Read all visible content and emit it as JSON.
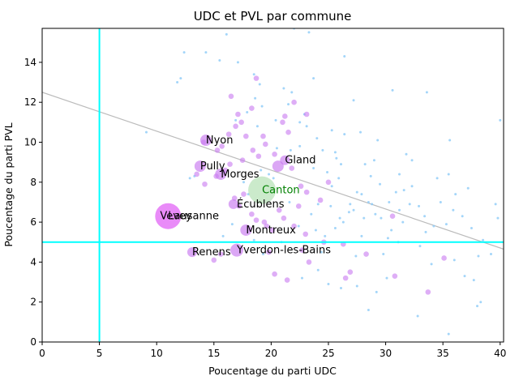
{
  "chart_data": {
    "type": "scatter",
    "title": "UDC et PVL par commune",
    "xlabel": "Poucentage du parti UDC",
    "ylabel": "Poucentage du parti PVL",
    "xlim": [
      0,
      40.3
    ],
    "ylim": [
      0,
      15.7
    ],
    "xticks": [
      0,
      5,
      10,
      15,
      20,
      25,
      30,
      35,
      40
    ],
    "yticks": [
      0,
      2,
      4,
      6,
      8,
      10,
      12,
      14
    ],
    "grid": false,
    "reference_lines": {
      "vertical_x": 5,
      "horizontal_y": 5,
      "color": "#00ffff"
    },
    "trend_line": {
      "x": [
        0,
        40.3
      ],
      "y": [
        12.5,
        4.65
      ],
      "color": "#bbbbbb"
    },
    "colors": {
      "large": "#c878f0",
      "small": "#8ccaf8",
      "highlight": "#e05af5",
      "canton": "#a8dca8",
      "canton_text": "#008000"
    },
    "highlight_points": [
      {
        "x": 11.0,
        "y": 6.3,
        "r": 16
      },
      {
        "x": 19.2,
        "y": 7.6,
        "r": 17
      },
      {
        "x": 14.3,
        "y": 10.1,
        "r": 7
      },
      {
        "x": 13.8,
        "y": 8.8,
        "r": 7
      },
      {
        "x": 15.6,
        "y": 8.4,
        "r": 7
      },
      {
        "x": 20.6,
        "y": 8.8,
        "r": 7
      },
      {
        "x": 21.2,
        "y": 9.1,
        "r": 6
      },
      {
        "x": 17.8,
        "y": 5.6,
        "r": 7
      },
      {
        "x": 17.0,
        "y": 4.6,
        "r": 8
      },
      {
        "x": 13.1,
        "y": 4.5,
        "r": 6
      },
      {
        "x": 16.7,
        "y": 6.9,
        "r": 6
      }
    ],
    "medium_points": [
      [
        14.1,
        10.0
      ],
      [
        15.7,
        9.8
      ],
      [
        16.3,
        10.4
      ],
      [
        15.3,
        9.6
      ],
      [
        13.5,
        8.4
      ],
      [
        14.2,
        7.9
      ],
      [
        15.2,
        8.3
      ],
      [
        16.0,
        8.6
      ],
      [
        16.8,
        7.2
      ],
      [
        17.6,
        7.4
      ],
      [
        16.5,
        12.3
      ],
      [
        17.1,
        11.4
      ],
      [
        17.4,
        11.0
      ],
      [
        18.3,
        11.7
      ],
      [
        17.8,
        10.3
      ],
      [
        19.3,
        10.3
      ],
      [
        19.5,
        9.9
      ],
      [
        18.4,
        9.6
      ],
      [
        20.3,
        9.4
      ],
      [
        21.8,
        8.7
      ],
      [
        22.6,
        7.8
      ],
      [
        23.1,
        7.5
      ],
      [
        24.3,
        7.1
      ],
      [
        22.4,
        6.8
      ],
      [
        21.1,
        6.2
      ],
      [
        20.7,
        6.6
      ],
      [
        19.6,
        5.8
      ],
      [
        18.3,
        6.4
      ],
      [
        18.7,
        6.1
      ],
      [
        19.4,
        6.0
      ],
      [
        20.1,
        5.6
      ],
      [
        22.0,
        5.8
      ],
      [
        23.0,
        5.4
      ],
      [
        24.6,
        5.0
      ],
      [
        23.3,
        4.0
      ],
      [
        22.7,
        4.6
      ],
      [
        21.4,
        3.1
      ],
      [
        20.3,
        3.4
      ],
      [
        19.8,
        4.5
      ],
      [
        15.6,
        4.4
      ],
      [
        15.0,
        4.1
      ],
      [
        17.2,
        6.8
      ],
      [
        21.2,
        11.3
      ],
      [
        21.5,
        10.5
      ],
      [
        22.0,
        12.0
      ],
      [
        23.1,
        11.4
      ],
      [
        21.0,
        11.0
      ],
      [
        25.0,
        8.0
      ],
      [
        26.5,
        3.2
      ],
      [
        26.3,
        4.9
      ],
      [
        26.9,
        3.5
      ],
      [
        28.3,
        4.4
      ],
      [
        30.8,
        3.3
      ],
      [
        33.7,
        2.5
      ],
      [
        35.1,
        4.2
      ],
      [
        30.6,
        6.3
      ],
      [
        17.5,
        9.1
      ],
      [
        18.9,
        9.3
      ],
      [
        16.9,
        10.8
      ],
      [
        18.7,
        13.2
      ],
      [
        16.4,
        8.9
      ]
    ],
    "small_points": [
      [
        11.8,
        13.0
      ],
      [
        12.1,
        13.2
      ],
      [
        12.4,
        14.5
      ],
      [
        14.3,
        14.5
      ],
      [
        15.5,
        14.1
      ],
      [
        16.1,
        15.4
      ],
      [
        17.1,
        14.0
      ],
      [
        18.5,
        13.4
      ],
      [
        18.6,
        12.2
      ],
      [
        19.0,
        12.9
      ],
      [
        19.2,
        11.8
      ],
      [
        20.4,
        11.1
      ],
      [
        21.5,
        11.9
      ],
      [
        21.8,
        12.5
      ],
      [
        21.1,
        12.7
      ],
      [
        22.9,
        11.4
      ],
      [
        22.5,
        11.0
      ],
      [
        22.0,
        15.7
      ],
      [
        23.3,
        15.5
      ],
      [
        23.7,
        13.2
      ],
      [
        24.5,
        9.6
      ],
      [
        25.3,
        10.6
      ],
      [
        25.7,
        9.2
      ],
      [
        26.1,
        8.9
      ],
      [
        26.4,
        10.4
      ],
      [
        26.4,
        14.3
      ],
      [
        27.2,
        12.1
      ],
      [
        27.5,
        7.5
      ],
      [
        27.2,
        6.6
      ],
      [
        26.9,
        6.9
      ],
      [
        28.1,
        6.2
      ],
      [
        28.5,
        7.0
      ],
      [
        29.1,
        6.4
      ],
      [
        29.6,
        6.2
      ],
      [
        29.3,
        10.1
      ],
      [
        30.2,
        5.2
      ],
      [
        31.5,
        6.0
      ],
      [
        31.2,
        6.6
      ],
      [
        30.9,
        7.5
      ],
      [
        31.6,
        7.6
      ],
      [
        32.3,
        7.8
      ],
      [
        32.9,
        6.8
      ],
      [
        33.4,
        6.3
      ],
      [
        34.2,
        5.8
      ],
      [
        35.5,
        8.4
      ],
      [
        36.1,
        7.4
      ],
      [
        36.7,
        6.3
      ],
      [
        37.2,
        7.7
      ],
      [
        38.1,
        4.3
      ],
      [
        38.5,
        5.1
      ],
      [
        39.2,
        4.4
      ],
      [
        39.8,
        6.2
      ],
      [
        39.6,
        6.9
      ],
      [
        40.0,
        11.1
      ],
      [
        35.6,
        10.1
      ],
      [
        33.6,
        12.5
      ],
      [
        31.2,
        8.4
      ],
      [
        32.3,
        9.1
      ],
      [
        34.5,
        8.2
      ],
      [
        36.9,
        3.3
      ],
      [
        37.7,
        3.1
      ],
      [
        38.3,
        2.0
      ],
      [
        38.0,
        1.8
      ],
      [
        35.5,
        0.4
      ],
      [
        32.8,
        1.3
      ],
      [
        28.5,
        1.6
      ],
      [
        29.2,
        2.5
      ],
      [
        27.5,
        2.8
      ],
      [
        26.1,
        2.7
      ],
      [
        25.0,
        2.9
      ],
      [
        24.1,
        3.6
      ],
      [
        24.4,
        4.5
      ],
      [
        24.7,
        5.3
      ],
      [
        25.6,
        5.7
      ],
      [
        26.3,
        6.0
      ],
      [
        27.9,
        5.3
      ],
      [
        29.8,
        4.4
      ],
      [
        30.1,
        3.2
      ],
      [
        31.1,
        5.0
      ],
      [
        33.0,
        4.8
      ],
      [
        34.0,
        3.9
      ],
      [
        35.3,
        5.9
      ],
      [
        36.0,
        4.1
      ],
      [
        9.1,
        10.5
      ],
      [
        12.9,
        8.2
      ],
      [
        13.3,
        8.3
      ],
      [
        17.6,
        8.0
      ],
      [
        18.0,
        7.4
      ],
      [
        19.8,
        8.4
      ],
      [
        20.2,
        8.2
      ],
      [
        21.6,
        7.0
      ],
      [
        22.4,
        5.8
      ],
      [
        23.5,
        6.4
      ],
      [
        24.1,
        6.9
      ],
      [
        25.2,
        6.8
      ],
      [
        26.0,
        6.2
      ],
      [
        26.8,
        6.5
      ],
      [
        27.9,
        7.4
      ],
      [
        28.7,
        8.3
      ],
      [
        29.5,
        7.9
      ],
      [
        30.3,
        7.0
      ],
      [
        28.2,
        8.9
      ],
      [
        25.6,
        9.5
      ],
      [
        24.0,
        10.2
      ],
      [
        23.1,
        10.8
      ],
      [
        22.5,
        9.8
      ],
      [
        20.5,
        9.7
      ],
      [
        19.1,
        8.6
      ],
      [
        21.7,
        9.6
      ],
      [
        23.7,
        8.7
      ],
      [
        24.9,
        8.5
      ],
      [
        25.9,
        8.2
      ],
      [
        23.9,
        5.6
      ],
      [
        22.7,
        3.2
      ],
      [
        20.9,
        5.0
      ],
      [
        19.3,
        4.4
      ],
      [
        18.5,
        5.1
      ],
      [
        16.6,
        5.9
      ],
      [
        15.8,
        5.3
      ],
      [
        25.3,
        7.8
      ],
      [
        27.4,
        4.3
      ],
      [
        28.8,
        6.9
      ],
      [
        30.5,
        5.6
      ],
      [
        32.1,
        6.9
      ],
      [
        33.5,
        5.5
      ],
      [
        34.8,
        7.0
      ],
      [
        35.9,
        6.6
      ],
      [
        37.5,
        5.7
      ],
      [
        31.8,
        9.4
      ],
      [
        30.6,
        12.6
      ],
      [
        29.0,
        9.1
      ],
      [
        27.8,
        10.5
      ],
      [
        18.8,
        10.8
      ],
      [
        17.9,
        11.5
      ],
      [
        16.9,
        11.1
      ]
    ],
    "annotations": [
      {
        "label": "Nyon",
        "x": 14.3,
        "y": 10.1,
        "color": "#000000"
      },
      {
        "label": "Pully",
        "x": 13.8,
        "y": 8.8,
        "color": "#000000"
      },
      {
        "label": "Morges",
        "x": 15.6,
        "y": 8.4,
        "color": "#000000"
      },
      {
        "label": "Gland",
        "x": 21.2,
        "y": 9.1,
        "color": "#000000"
      },
      {
        "label": "Canton",
        "x": 19.2,
        "y": 7.6,
        "color": "#008000"
      },
      {
        "label": "Écublens",
        "x": 17.0,
        "y": 6.9,
        "color": "#000000"
      },
      {
        "label": "Lausanne",
        "x": 11.0,
        "y": 6.3,
        "color": "#000000"
      },
      {
        "label": "Vevey",
        "x": 10.3,
        "y": 6.3,
        "color": "#000000"
      },
      {
        "label": "Montreux",
        "x": 17.8,
        "y": 5.6,
        "color": "#000000"
      },
      {
        "label": "Renens",
        "x": 13.1,
        "y": 4.5,
        "color": "#000000"
      },
      {
        "label": "Yverdon-les-Bains",
        "x": 17.0,
        "y": 4.6,
        "color": "#000000"
      }
    ]
  }
}
